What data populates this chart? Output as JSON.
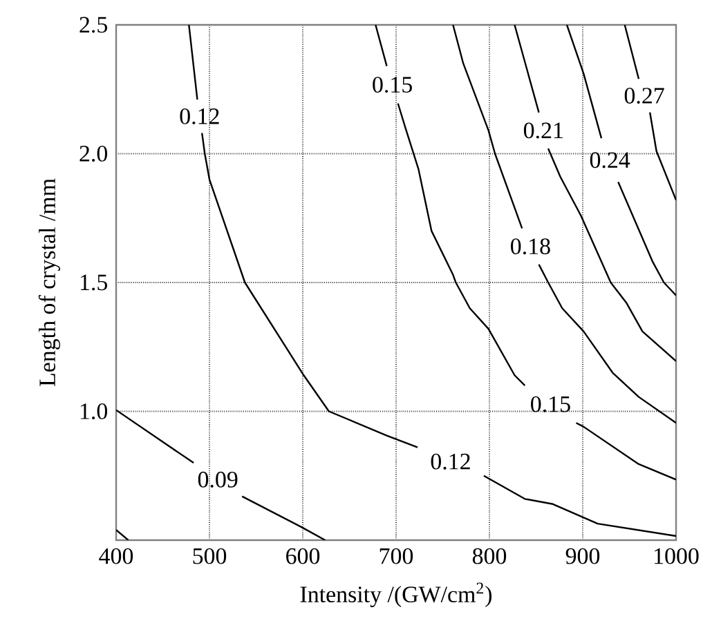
{
  "chart_data": {
    "type": "line",
    "xlabel": "Intensity /(GW/cm$^{2}$)",
    "ylabel": "Length of crystal /mm",
    "xlim": [
      400,
      1000
    ],
    "ylim": [
      0.5,
      2.5
    ],
    "xticks": [
      400,
      500,
      600,
      700,
      800,
      900,
      1000
    ],
    "yticks": [
      {
        "value": 1.0,
        "label": "1.0"
      },
      1.5,
      {
        "value": 2.0,
        "label": "2.0"
      },
      2.5
    ],
    "grid": true,
    "marker": "none",
    "line_style": "solid",
    "series": [
      {
        "color": "#000000",
        "x": [
          400,
          413
        ],
        "values": [
          0.54,
          0.5
        ]
      },
      {
        "name": "0.09",
        "color": "#000000",
        "x": [
          400,
          483,
          null,
          535,
          599,
          624
        ],
        "values": [
          1.005,
          0.8,
          null,
          0.67,
          0.55,
          0.5
        ]
      },
      {
        "name": "0.12",
        "color": "#000000",
        "x": [
          478,
          487,
          null,
          492,
          495,
          500,
          538,
          601,
          628,
          690,
          723,
          null,
          794,
          838,
          868,
          916,
          1000
        ],
        "values": [
          2.5,
          2.21,
          null,
          2.08,
          2.0,
          1.9,
          1.5,
          1.14,
          1.0,
          0.906,
          0.86,
          null,
          0.75,
          0.66,
          0.64,
          0.564,
          0.516
        ]
      },
      {
        "name": "0.15",
        "color": "#000000",
        "x": [
          678,
          690,
          null,
          702,
          710,
          724,
          738,
          761,
          764,
          779,
          799,
          827,
          838,
          null,
          893,
          901,
          960,
          1000
        ],
        "values": [
          2.5,
          2.34,
          null,
          2.195,
          2.1,
          1.94,
          1.7,
          1.53,
          1.5,
          1.4,
          1.32,
          1.14,
          1.1,
          null,
          0.955,
          0.94,
          0.795,
          0.735
        ]
      },
      {
        "name": "0.18",
        "color": "#000000",
        "x": [
          761,
          772,
          799,
          806,
          835,
          null,
          853,
          863,
          878,
          901,
          932,
          960,
          1000
        ],
        "values": [
          2.5,
          2.35,
          2.09,
          2.0,
          1.71,
          null,
          1.57,
          1.5,
          1.4,
          1.31,
          1.15,
          1.056,
          0.955
        ]
      },
      {
        "name": "0.21",
        "color": "#000000",
        "x": [
          827,
          853,
          null,
          863,
          876,
          898,
          930,
          947,
          964,
          1000
        ],
        "values": [
          2.5,
          2.16,
          null,
          2.02,
          1.91,
          1.76,
          1.5,
          1.42,
          1.31,
          1.195
        ]
      },
      {
        "name": "0.24",
        "color": "#000000",
        "x": [
          883,
          901,
          920,
          null,
          938,
          975,
          987,
          1000
        ],
        "values": [
          2.5,
          2.31,
          2.06,
          null,
          1.89,
          1.58,
          1.5,
          1.45
        ]
      },
      {
        "name": "0.27",
        "color": "#000000",
        "x": [
          945,
          960,
          null,
          972,
          979,
          1000
        ],
        "values": [
          2.5,
          2.29,
          null,
          2.16,
          2.01,
          1.82
        ]
      }
    ]
  }
}
